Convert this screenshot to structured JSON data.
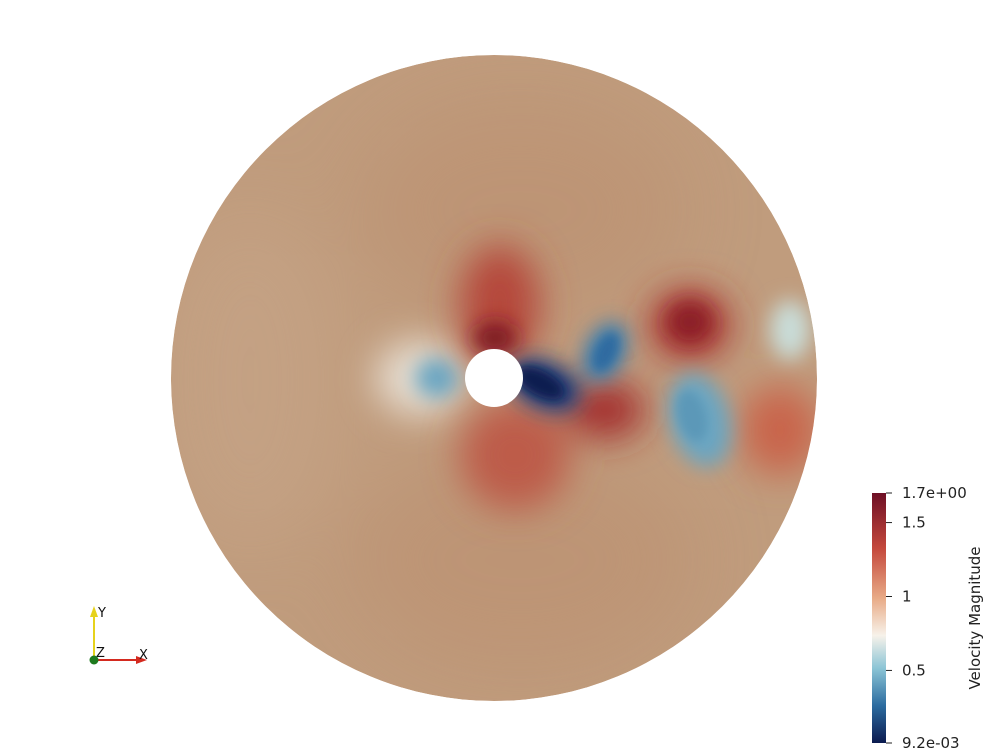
{
  "colorbar": {
    "title": "Velocity Magnitude",
    "max_label": "1.7e+00",
    "min_label": "9.2e-03",
    "ticks": [
      {
        "value": 1.7,
        "label": "1.7e+00"
      },
      {
        "value": 1.5,
        "label": "1.5"
      },
      {
        "value": 1.0,
        "label": "1"
      },
      {
        "value": 0.5,
        "label": "0.5"
      },
      {
        "value": 0.0092,
        "label": "9.2e-03"
      }
    ],
    "range": [
      0.0092,
      1.7
    ],
    "colormap": [
      "#0b1a4f",
      "#2c6ca0",
      "#8cc5d6",
      "#f7f2ea",
      "#e8aa86",
      "#c4483c",
      "#6e0f25"
    ]
  },
  "orientation_axes": {
    "x_label": "X",
    "y_label": "Y",
    "z_label": "Z",
    "x_color": "#d42a1f",
    "y_color": "#e6d21c",
    "z_color": "#1e7a1e"
  },
  "field": {
    "background_color": "#bf9a7a",
    "hole_color": "#ffffff"
  }
}
